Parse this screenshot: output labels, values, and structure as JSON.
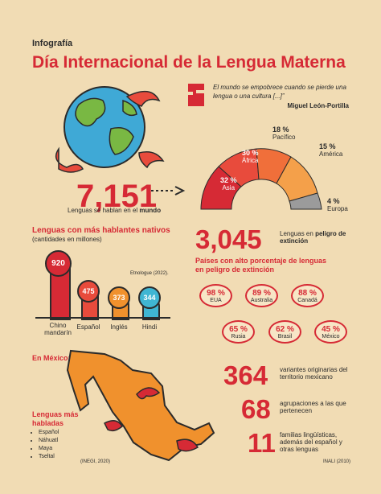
{
  "header": {
    "kicker": "Infografía",
    "title": "Día Internacional de la Lengua Materna"
  },
  "quote": {
    "text": "El mundo se empobrece cuando se pierde una lengua o una cultura [...]”",
    "author": "Miguel León-Portilla"
  },
  "world": {
    "total": "7,151",
    "caption_prefix": "Lenguas se hablan en el",
    "caption_emph": "mundo"
  },
  "continents": [
    {
      "pct": "32 %",
      "name": "Asia"
    },
    {
      "pct": "30 %",
      "name": "África"
    },
    {
      "pct": "18 %",
      "name": "Pacífico"
    },
    {
      "pct": "15 %",
      "name": "América"
    },
    {
      "pct": "4 %",
      "name": "Europa"
    }
  ],
  "native": {
    "title": "Lenguas con más hablantes nativos",
    "subtitle": "(cantidades en millones)",
    "source": "Etnologue (2022).",
    "bars": [
      {
        "value": "920",
        "label": "Chino mandarín",
        "color": "#d62a35"
      },
      {
        "value": "475",
        "label": "Español",
        "color": "#e84b3c"
      },
      {
        "value": "373",
        "label": "Inglés",
        "color": "#f0912d"
      },
      {
        "value": "344",
        "label": "Hindi",
        "color": "#3fb6d3"
      }
    ]
  },
  "danger": {
    "total": "3,045",
    "label_prefix": "Lenguas en",
    "label_emph": "peligro de extinción",
    "countries_title": "Países con alto porcentaje de lenguas en peligro de extinción",
    "countries": [
      {
        "pct": "98 %",
        "name": "EUA"
      },
      {
        "pct": "89 %",
        "name": "Australia"
      },
      {
        "pct": "88 %",
        "name": "Canadá"
      },
      {
        "pct": "65 %",
        "name": "Rusia"
      },
      {
        "pct": "62 %",
        "name": "Brasil"
      },
      {
        "pct": "45 %",
        "name": "México"
      }
    ]
  },
  "mexico": {
    "title": "En México:",
    "spoken_title": "Lenguas más habladas",
    "spoken": [
      "Español",
      "Náhuatl",
      "Maya",
      "Tseltal"
    ],
    "source_left": "(INEGI, 2020)",
    "source_right": "INALI (2010)",
    "stats": [
      {
        "value": "364",
        "text": "variantes originarias del territorio mexicano"
      },
      {
        "value": "68",
        "text": "agrupaciones a las que pertenecen"
      },
      {
        "value": "11",
        "text": "familias lingüísticas, además del español y otras lenguas"
      }
    ]
  }
}
